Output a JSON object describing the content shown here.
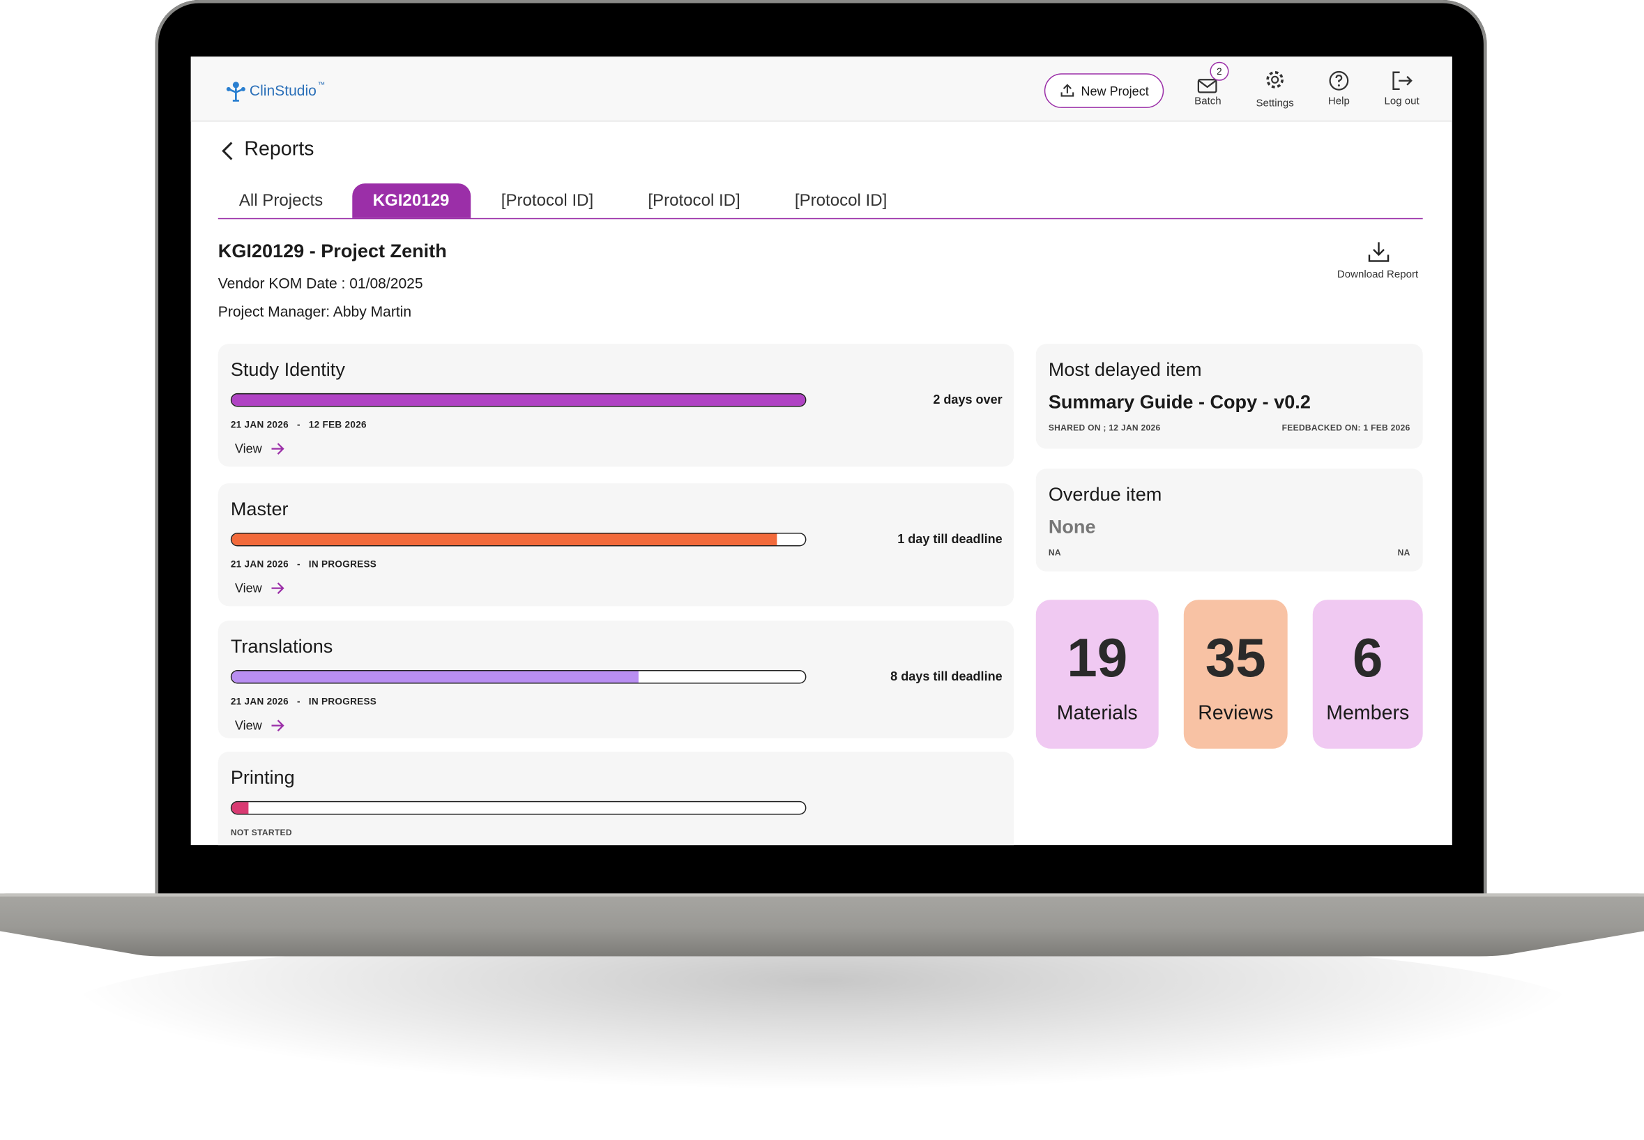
{
  "header": {
    "logo": "ClinStudio",
    "trademark": "™",
    "new_project": "New Project",
    "nav": [
      {
        "label": "Batch",
        "badge": "2"
      },
      {
        "label": "Settings"
      },
      {
        "label": "Help"
      },
      {
        "label": "Log out"
      }
    ]
  },
  "page": {
    "back": "Reports",
    "tabs": [
      "All Projects",
      "KGI20129",
      "[Protocol ID]",
      "[Protocol ID]",
      "[Protocol ID]"
    ],
    "active_tab": 1
  },
  "project": {
    "title": "KGI20129 - Project Zenith",
    "kom": "Vendor KOM Date : 01/08/2025",
    "manager": "Project Manager: Abby Martin",
    "download": "Download Report"
  },
  "date_separator": "-",
  "stages": [
    {
      "name": "Study Identity",
      "status": "2 days over",
      "start": "21 JAN 2026",
      "end": "12 FEB 2026",
      "link": "View",
      "progress": 100,
      "color": "#b043c4"
    },
    {
      "name": "Master",
      "status": "1 day till deadline",
      "start": "21 JAN 2026",
      "end": "IN PROGRESS",
      "link": "View",
      "progress": 95,
      "color": "#f26a3b"
    },
    {
      "name": "Translations",
      "status": "8 days till deadline",
      "start": "21 JAN 2026",
      "end": "IN PROGRESS",
      "link": "View",
      "progress": 71,
      "color": "#b98ef2"
    },
    {
      "name": "Printing",
      "end": "NOT STARTED",
      "progress": 3,
      "color": "#d93a72"
    }
  ],
  "delayed": {
    "title": "Most delayed item",
    "item": "Summary Guide - Copy - v0.2",
    "shared": "SHARED ON ; 12 JAN 2026",
    "feedback": "FEEDBACKED ON: 1 FEB 2026"
  },
  "overdue": {
    "title": "Overdue item",
    "item": "None",
    "left": "NA",
    "right": "NA"
  },
  "stats": [
    {
      "value": "19",
      "label": "Materials",
      "color": "#f0c9f2"
    },
    {
      "value": "35",
      "label": "Reviews",
      "color": "#f8c2a4"
    },
    {
      "value": "6",
      "label": "Members",
      "color": "#f0c9f2"
    }
  ]
}
